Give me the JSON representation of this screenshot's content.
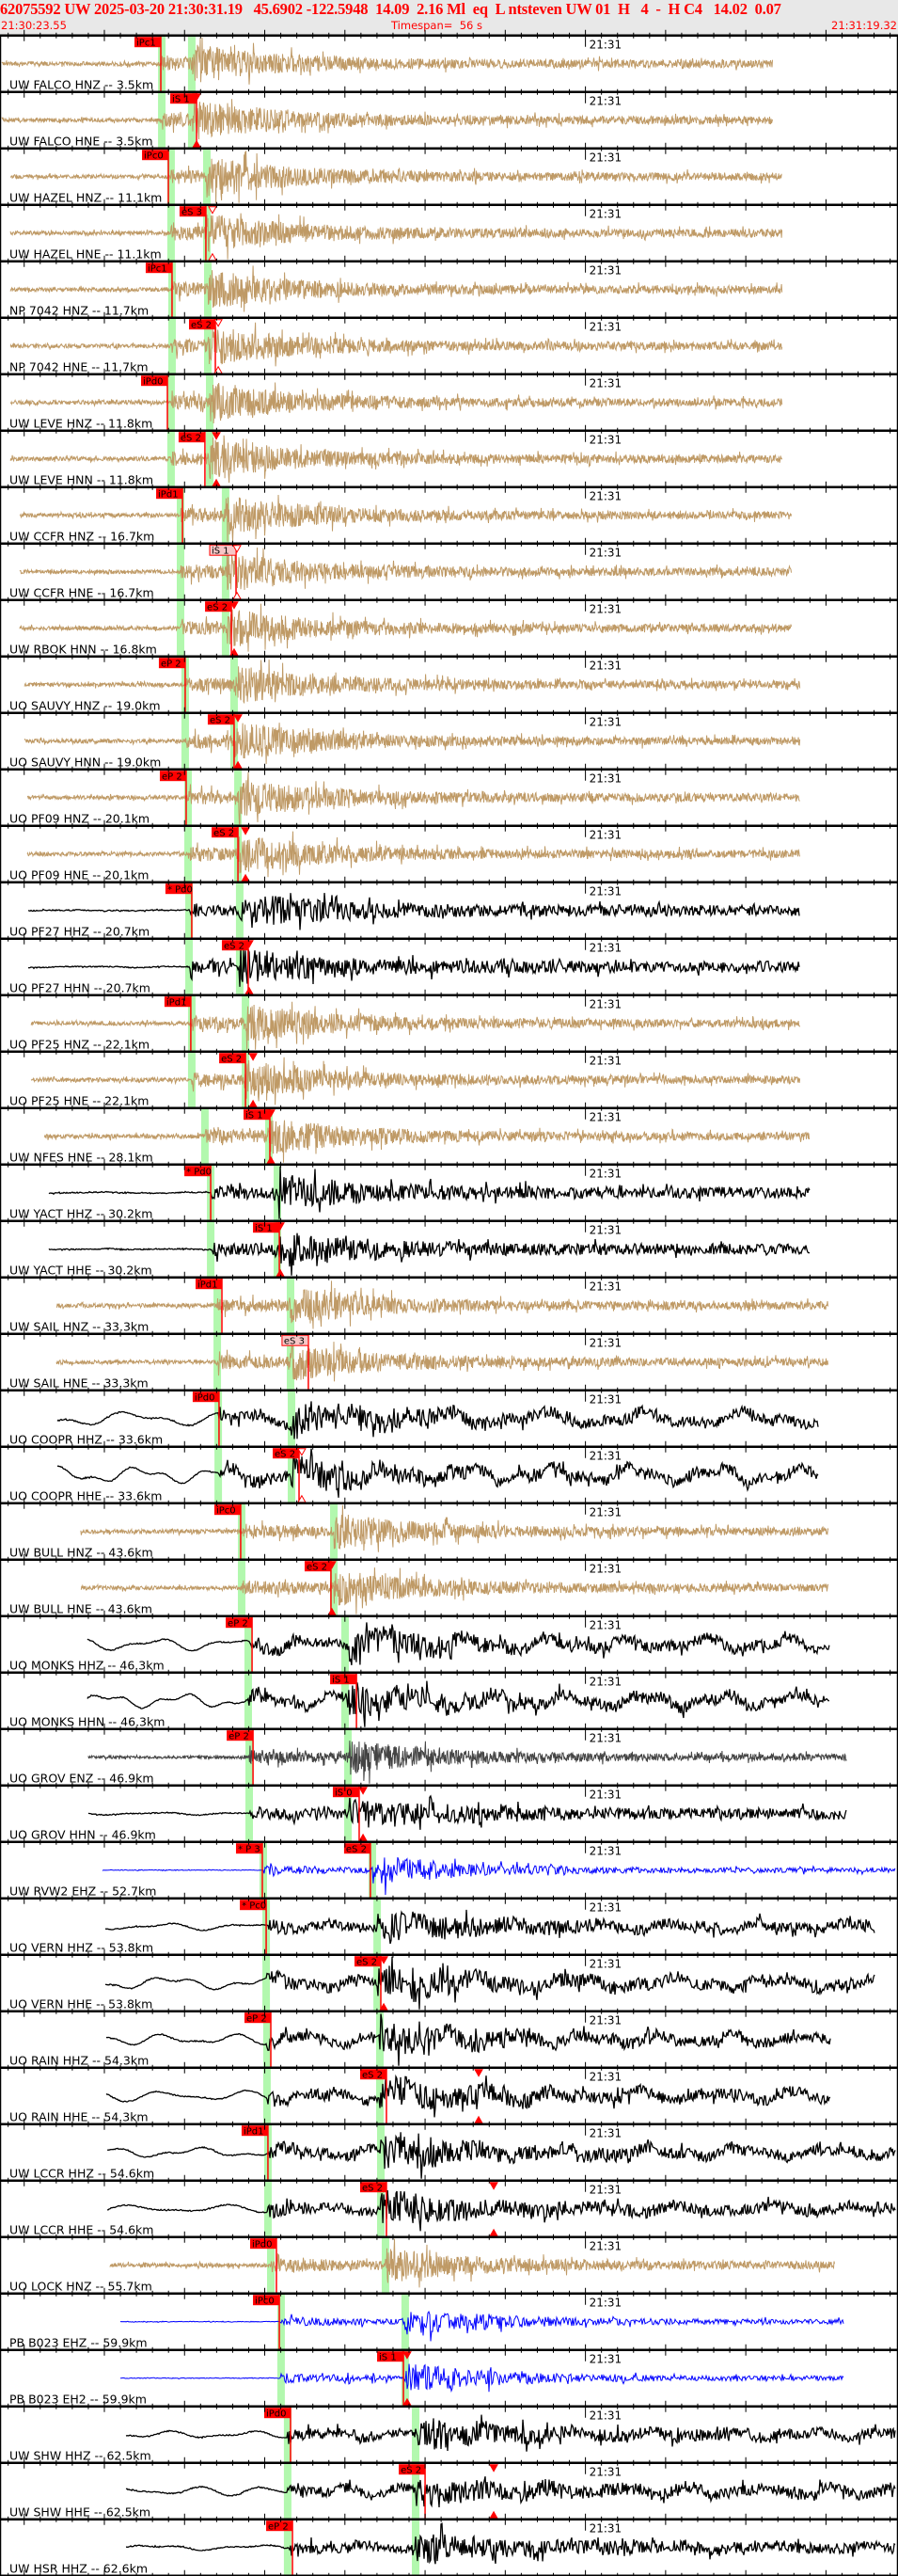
{
  "header": {
    "event_line": "62075592 UW 2025-03-20 21:30:31.19   45.6902 -122.5948  14.09  2.16 Ml  eq  L ntsteven UW 01  H   4  -  H C4   14.02  0.07",
    "start_time": "21:30:23.55",
    "timespan": "Timespan=  56 s",
    "end_time": "21:31:19.32"
  },
  "time_axis": {
    "start": "21:30:23.55",
    "span_s": 56,
    "minute_time": "21:31:00",
    "minute_label": "21:31",
    "minor_tick_s": 1,
    "major_tick_s": 5
  },
  "colors": {
    "tan": "#bf9a66",
    "black": "#000000",
    "blue": "#0000ff",
    "gray": "#444444",
    "pick": "#ff0000",
    "pick_pending": "#f7c6c6",
    "band": "#b2f8ae",
    "header_bg": "#e8e8e8"
  },
  "traces": [
    {
      "label": "UW FALCO HNZ -- 3.5km",
      "color": "tan",
      "start": "21:30:23.61",
      "end": "21:31:11.69",
      "bands": [
        "21:30:33.58",
        "21:30:35.45"
      ],
      "picks": [
        {
          "label": "iPc1",
          "time": "21:30:33.52"
        }
      ]
    },
    {
      "label": "UW FALCO HNE -- 3.5km",
      "color": "tan",
      "start": "21:30:23.61",
      "end": "21:31:11.69",
      "bands": [
        "21:30:33.58",
        "21:30:35.45"
      ],
      "picks": [
        {
          "label": "iS 1",
          "time": "21:30:35.75"
        }
      ],
      "mark": {
        "time": "21:30:35.75",
        "filled": true
      }
    },
    {
      "label": "UW HAZEL HNZ -- 11.1km",
      "color": "tan",
      "start": "21:30:24.14",
      "end": "21:31:12.28",
      "bands": [
        "21:30:34.16",
        "21:30:36.39"
      ],
      "picks": [
        {
          "label": "iPc0",
          "time": "21:30:33.99"
        }
      ]
    },
    {
      "label": "UW HAZEL HNE -- 11.1km",
      "color": "tan",
      "start": "21:30:24.14",
      "end": "21:31:12.28",
      "bands": [
        "21:30:34.16",
        "21:30:36.39"
      ],
      "picks": [
        {
          "label": "eS 3",
          "time": "21:30:36.33"
        }
      ],
      "mark": {
        "time": "21:30:36.74",
        "filled": false
      }
    },
    {
      "label": "NP 7042 HNZ -- 11.7km",
      "color": "tan",
      "start": "21:30:24.14",
      "end": "21:31:12.28",
      "bands": [
        "21:30:34.22",
        "21:30:36.45"
      ],
      "picks": [
        {
          "label": "iPc1",
          "time": "21:30:34.22"
        }
      ]
    },
    {
      "label": "NP 7042 HNE -- 11.7km",
      "color": "tan",
      "start": "21:30:24.14",
      "end": "21:31:12.28",
      "bands": [
        "21:30:34.22",
        "21:30:36.45"
      ],
      "picks": [
        {
          "label": "eS 2",
          "time": "21:30:36.92"
        }
      ],
      "mark": {
        "time": "21:30:37.10",
        "filled": false
      }
    },
    {
      "label": "UW LEVE HNZ -- 11.8km",
      "color": "tan",
      "start": "21:30:24.14",
      "end": "21:31:12.28",
      "bands": [
        "21:30:34.16",
        "21:30:36.57"
      ],
      "picks": [
        {
          "label": "iPd0",
          "time": "21:30:33.93"
        }
      ]
    },
    {
      "label": "UW LEVE HNN -- 11.8km",
      "color": "tan",
      "start": "21:30:24.14",
      "end": "21:31:12.28",
      "bands": [
        "21:30:34.16",
        "21:30:36.57"
      ],
      "picks": [
        {
          "label": "eS 2",
          "time": "21:30:36.27"
        }
      ],
      "mark": {
        "time": "21:30:36.98",
        "filled": true
      }
    },
    {
      "label": "UW CCFR HNZ -- 16.7km",
      "color": "tan",
      "start": "21:30:24.72",
      "end": "21:31:12.86",
      "bands": [
        "21:30:34.75",
        "21:30:37.56"
      ],
      "picks": [
        {
          "label": "iPd1",
          "time": "21:30:34.87"
        }
      ]
    },
    {
      "label": "UW CCFR HNE -- 16.7km",
      "color": "tan",
      "start": "21:30:24.72",
      "end": "21:31:12.86",
      "bands": [
        "21:30:34.75",
        "21:30:37.56"
      ],
      "picks": [
        {
          "label": "iS 1",
          "time": "21:30:38.21",
          "pending": true
        }
      ],
      "mark": {
        "time": "21:30:38.27",
        "filled": false
      }
    },
    {
      "label": "UW RBOK HNN -- 16.8km",
      "color": "tan",
      "start": "21:30:24.72",
      "end": "21:31:12.86",
      "bands": [
        "21:30:34.75",
        "21:30:37.56"
      ],
      "picks": [
        {
          "label": "eS 2",
          "time": "21:30:37.92"
        }
      ],
      "mark": {
        "time": "21:30:38.09",
        "filled": true
      }
    },
    {
      "label": "UO SAUVY HNZ -- 19.0km",
      "color": "tan",
      "start": "21:30:25.02",
      "end": "21:31:13.39",
      "bands": [
        "21:30:35.04",
        "21:30:38.09"
      ],
      "picks": [
        {
          "label": "eP 2",
          "time": "21:30:35.04"
        }
      ]
    },
    {
      "label": "UO SAUVY HNN -- 19.0km",
      "color": "tan",
      "start": "21:30:25.02",
      "end": "21:31:13.39",
      "bands": [
        "21:30:35.04",
        "21:30:38.09"
      ],
      "picks": [
        {
          "label": "eS 2",
          "time": "21:30:38.09"
        }
      ],
      "mark": {
        "time": "21:30:38.33",
        "filled": true
      }
    },
    {
      "label": "UO PF09 HNZ -- 20.1km",
      "color": "tan",
      "start": "21:30:25.19",
      "end": "21:31:13.39",
      "bands": [
        "21:30:35.22",
        "21:30:38.33"
      ],
      "picks": [
        {
          "label": "eP 2",
          "time": "21:30:35.10"
        }
      ]
    },
    {
      "label": "UO PF09 HNE -- 20.1km",
      "color": "tan",
      "start": "21:30:25.19",
      "end": "21:31:13.39",
      "bands": [
        "21:30:35.22",
        "21:30:38.33"
      ],
      "picks": [
        {
          "label": "eS 2",
          "time": "21:30:38.33"
        }
      ],
      "mark": {
        "time": "21:30:38.80",
        "filled": true
      }
    },
    {
      "label": "UO PF27 HHZ -- 20.7km",
      "color": "black",
      "start": "21:30:25.25",
      "end": "21:31:13.39",
      "bands": [
        "21:30:35.28",
        "21:30:38.44"
      ],
      "picks": [
        {
          "label": "* Pd0",
          "time": "21:30:35.45"
        }
      ]
    },
    {
      "label": "UO PF27 HHN -- 20.7km",
      "color": "black",
      "start": "21:30:25.25",
      "end": "21:31:13.39",
      "bands": [
        "21:30:35.28",
        "21:30:38.44"
      ],
      "picks": [
        {
          "label": "eS 2",
          "time": "21:30:38.97"
        }
      ],
      "mark": {
        "time": "21:30:39.03",
        "filled": true
      }
    },
    {
      "label": "UO PF25 HNZ -- 22.1km",
      "color": "tan",
      "start": "21:30:25.43",
      "end": "21:31:13.39",
      "bands": [
        "21:30:35.45",
        "21:30:38.80"
      ],
      "picks": [
        {
          "label": "iPd1",
          "time": "21:30:35.39"
        }
      ]
    },
    {
      "label": "UO PF25 HNE -- 22.1km",
      "color": "tan",
      "start": "21:30:25.43",
      "end": "21:31:13.39",
      "bands": [
        "21:30:35.45",
        "21:30:38.80"
      ],
      "picks": [
        {
          "label": "eS 2",
          "time": "21:30:38.80"
        }
      ],
      "mark": {
        "time": "21:30:39.27",
        "filled": true
      }
    },
    {
      "label": "UW NFES HNE -- 28.1km",
      "color": "tan",
      "start": "21:30:26.25",
      "end": "21:31:13.98",
      "bands": [
        "21:30:36.27",
        "21:30:40.26"
      ],
      "picks": [
        {
          "label": "iS 1",
          "time": "21:30:40.32"
        }
      ],
      "mark": {
        "time": "21:30:40.38",
        "filled": true
      }
    },
    {
      "label": "UW YACT HHZ -- 30.2km",
      "color": "black",
      "start": "21:30:26.54",
      "end": "21:31:13.98",
      "bands": [
        "21:30:36.63",
        "21:30:40.79"
      ],
      "picks": [
        {
          "label": "* Pd0",
          "time": "21:30:36.63"
        }
      ]
    },
    {
      "label": "UW YACT HHE -- 30.2km",
      "color": "black",
      "start": "21:30:26.54",
      "end": "21:31:13.98",
      "bands": [
        "21:30:36.63",
        "21:30:40.79"
      ],
      "picks": [
        {
          "label": "iS 1",
          "time": "21:30:40.91"
        }
      ],
      "mark": {
        "time": "21:30:40.97",
        "filled": true
      }
    },
    {
      "label": "UW SAIL HNZ -- 33.3km",
      "color": "tan",
      "start": "21:30:27.01",
      "end": "21:31:15.15",
      "bands": [
        "21:30:37.04",
        "21:30:41.61"
      ],
      "picks": [
        {
          "label": "iPd1",
          "time": "21:30:37.33"
        }
      ]
    },
    {
      "label": "UW SAIL HNE -- 33.3km",
      "color": "tan",
      "start": "21:30:27.01",
      "end": "21:31:15.15",
      "bands": [
        "21:30:37.04",
        "21:30:41.61"
      ],
      "picks": [
        {
          "label": "eS 3",
          "time": "21:30:42.72",
          "pending": true
        }
      ]
    },
    {
      "label": "UO COOPR HHZ -- 33.6km",
      "color": "black",
      "start": "21:30:27.07",
      "end": "21:31:14.56",
      "bands": [
        "21:30:37.10",
        "21:30:41.67"
      ],
      "picks": [
        {
          "label": "iPd0",
          "time": "21:30:37.15"
        }
      ]
    },
    {
      "label": "UO COOPR HHE -- 33.6km",
      "color": "black",
      "start": "21:30:27.07",
      "end": "21:31:14.56",
      "bands": [
        "21:30:37.10",
        "21:30:41.67"
      ],
      "picks": [
        {
          "label": "eS 2",
          "time": "21:30:42.14"
        }
      ],
      "mark": {
        "time": "21:30:42.31",
        "filled": false
      }
    },
    {
      "label": "UW BULL HNZ -- 43.6km",
      "color": "tan",
      "start": "21:30:28.53",
      "end": "21:31:15.15",
      "bands": [
        "21:30:38.56",
        "21:30:44.31"
      ],
      "picks": [
        {
          "label": "iPc0",
          "time": "21:30:38.50"
        }
      ]
    },
    {
      "label": "UW BULL HNE -- 43.6km",
      "color": "tan",
      "start": "21:30:28.53",
      "end": "21:31:15.15",
      "bands": [
        "21:30:38.56",
        "21:30:44.31"
      ],
      "picks": [
        {
          "label": "eS 2",
          "time": "21:30:44.13"
        }
      ],
      "mark": {
        "time": "21:30:44.19",
        "filled": true
      }
    },
    {
      "label": "UO MONKS HHZ -- 46.3km",
      "color": "black",
      "start": "21:30:28.94",
      "end": "21:31:15.21",
      "bands": [
        "21:30:38.97",
        "21:30:45.01"
      ],
      "picks": [
        {
          "label": "eP 2",
          "time": "21:30:39.21"
        }
      ]
    },
    {
      "label": "UO MONKS HHN -- 46.3km",
      "color": "black",
      "start": "21:30:28.94",
      "end": "21:31:15.21",
      "bands": [
        "21:30:38.97",
        "21:30:45.01"
      ],
      "picks": [
        {
          "label": "iS 1",
          "time": "21:30:45.72"
        }
      ]
    },
    {
      "label": "UO GROV ENZ -- 46.9km",
      "color": "gray",
      "start": "21:30:29.00",
      "end": "21:31:16.32",
      "bands": [
        "21:30:39.03",
        "21:30:45.19"
      ],
      "picks": [
        {
          "label": "eP 2",
          "time": "21:30:39.27"
        }
      ]
    },
    {
      "label": "UO GROV HHN -- 46.9km",
      "color": "black",
      "start": "21:30:29.00",
      "end": "21:31:16.32",
      "bands": [
        "21:30:39.03",
        "21:30:45.19"
      ],
      "picks": [
        {
          "label": "iS 0",
          "time": "21:30:45.89"
        }
      ],
      "mark": {
        "time": "21:30:46.13",
        "filled": true
      }
    },
    {
      "label": "UW RVW2 EHZ -- 52.7km",
      "color": "blue",
      "start": "21:30:29.88",
      "end": "21:31:19.32",
      "bands": [
        "21:30:39.91",
        "21:30:46.71"
      ],
      "picks": [
        {
          "label": "* P 3",
          "time": "21:30:39.85"
        },
        {
          "label": "eS 2",
          "time": "21:30:46.59"
        }
      ]
    },
    {
      "label": "UO VERN HHZ -- 53.8km",
      "color": "black",
      "start": "21:30:30.06",
      "end": "21:31:18.08",
      "bands": [
        "21:30:40.09",
        "21:30:47.01"
      ],
      "picks": [
        {
          "label": "* Pc0",
          "time": "21:30:40.09"
        }
      ]
    },
    {
      "label": "UO VERN HHE -- 53.8km",
      "color": "black",
      "start": "21:30:30.06",
      "end": "21:31:18.08",
      "bands": [
        "21:30:40.09",
        "21:30:47.01"
      ],
      "picks": [
        {
          "label": "eS 2",
          "time": "21:30:47.24"
        }
      ],
      "mark": {
        "time": "21:30:47.42",
        "filled": true
      }
    },
    {
      "label": "UO RAIN HHZ -- 54.3km",
      "color": "black",
      "start": "21:30:30.12",
      "end": "21:31:15.33",
      "bands": [
        "21:30:40.14",
        "21:30:47.18"
      ],
      "picks": [
        {
          "label": "eP 2",
          "time": "21:30:40.38"
        }
      ]
    },
    {
      "label": "UO RAIN HHE -- 54.3km",
      "color": "black",
      "start": "21:30:30.12",
      "end": "21:31:15.33",
      "bands": [
        "21:30:40.14",
        "21:30:47.18"
      ],
      "picks": [
        {
          "label": "eS 2",
          "time": "21:30:47.59"
        }
      ],
      "mark": {
        "time": "21:30:53.34",
        "filled": true
      }
    },
    {
      "label": "UW LCCR HHZ -- 54.6km",
      "color": "black",
      "start": "21:30:30.18",
      "end": "21:31:19.32",
      "bands": [
        "21:30:40.20",
        "21:30:47.24"
      ],
      "picks": [
        {
          "label": "iPd1",
          "time": "21:30:40.20"
        }
      ]
    },
    {
      "label": "UW LCCR HHE -- 54.6km",
      "color": "black",
      "start": "21:30:30.18",
      "end": "21:31:19.32",
      "bands": [
        "21:30:40.20",
        "21:30:47.24"
      ],
      "picks": [
        {
          "label": "eS 2",
          "time": "21:30:47.59"
        }
      ],
      "mark": {
        "time": "21:30:54.28",
        "filled": true
      }
    },
    {
      "label": "UO LOCK HNZ -- 55.7km",
      "color": "tan",
      "start": "21:30:30.35",
      "end": "21:31:15.56",
      "bands": [
        "21:30:40.38",
        "21:30:47.53"
      ],
      "picks": [
        {
          "label": "iPd0",
          "time": "21:30:40.73"
        }
      ]
    },
    {
      "label": "PB B023 EHZ -- 59.9km",
      "color": "blue",
      "start": "21:30:31.00",
      "end": "21:31:16.15",
      "bands": [
        "21:30:41.02",
        "21:30:48.76"
      ],
      "picks": [
        {
          "label": "iPc0",
          "time": "21:30:40.91"
        }
      ]
    },
    {
      "label": "PB B023 EH2 -- 59.9km",
      "color": "blue",
      "start": "21:30:31.00",
      "end": "21:31:16.15",
      "bands": [
        "21:30:41.02",
        "21:30:48.76"
      ],
      "picks": [
        {
          "label": "iS 1",
          "time": "21:30:48.65"
        }
      ],
      "mark": {
        "time": "21:30:48.88",
        "filled": true
      }
    },
    {
      "label": "UW SHW HHZ -- 62.5km",
      "color": "black",
      "start": "21:30:31.35",
      "end": "21:31:19.32",
      "bands": [
        "21:30:41.43",
        "21:30:49.41"
      ],
      "picks": [
        {
          "label": "iPd0",
          "time": "21:30:41.61"
        }
      ]
    },
    {
      "label": "UW SHW HHE -- 62.5km",
      "color": "black",
      "start": "21:30:31.35",
      "end": "21:31:19.32",
      "bands": [
        "21:30:41.43",
        "21:30:49.41"
      ],
      "picks": [
        {
          "label": "eS 2",
          "time": "21:30:50.00"
        }
      ],
      "mark": {
        "time": "21:30:54.28",
        "filled": true
      }
    },
    {
      "label": "UW HSR HHZ -- 62.6km",
      "color": "black",
      "start": "21:30:31.35",
      "end": "21:31:19.32",
      "bands": [
        "21:30:41.43",
        "21:30:49.41"
      ],
      "picks": [
        {
          "label": "eP 2",
          "time": "21:30:41.73"
        }
      ]
    }
  ]
}
